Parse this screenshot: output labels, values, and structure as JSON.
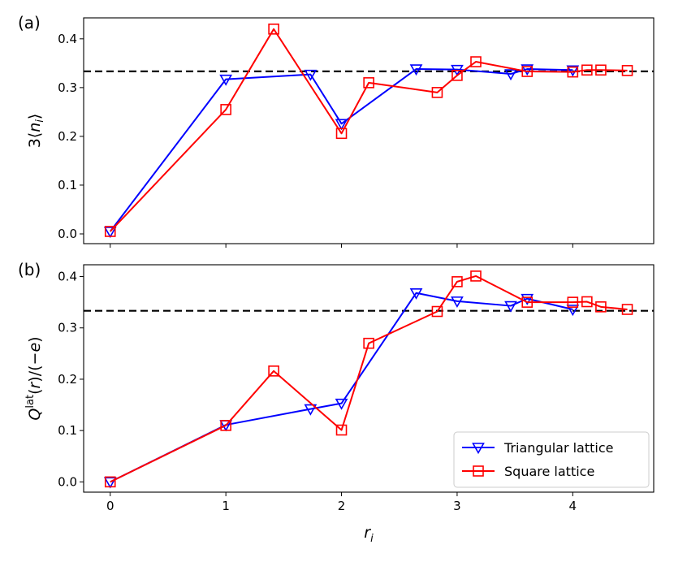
{
  "chart_data": [
    {
      "type": "line",
      "panel_label": "(a)",
      "ylabel": "3⟨nᵢ⟩",
      "ylim": [
        -0.02,
        0.443
      ],
      "xlim": [
        -0.23,
        4.7
      ],
      "yticks": [
        0.0,
        0.1,
        0.2,
        0.3,
        0.4
      ],
      "ytick_labels": [
        "0.0",
        "0.1",
        "0.2",
        "0.3",
        "0.4"
      ],
      "reference_line": {
        "y": 0.3333,
        "style": "dashed",
        "color": "#000000"
      },
      "series": [
        {
          "key": "triangular",
          "color": "#0000ff",
          "marker": "triangle-down",
          "x": [
            0,
            1,
            1.732,
            2,
            2.646,
            3,
            3.464,
            3.606,
            4
          ],
          "y": [
            0.005,
            0.317,
            0.327,
            0.226,
            0.338,
            0.337,
            0.328,
            0.338,
            0.336
          ]
        },
        {
          "key": "square",
          "color": "#ff0000",
          "marker": "square",
          "x": [
            0,
            1,
            1.414,
            2,
            2.236,
            2.828,
            3,
            3.162,
            3.606,
            4,
            4.123,
            4.243,
            4.472
          ],
          "y": [
            0.005,
            0.255,
            0.42,
            0.206,
            0.31,
            0.29,
            0.325,
            0.353,
            0.333,
            0.332,
            0.336,
            0.336,
            0.335
          ]
        }
      ]
    },
    {
      "type": "line",
      "panel_label": "(b)",
      "ylabel": "Q^lat(r)/(−e)",
      "xlabel": "rᵢ",
      "ylim": [
        -0.02,
        0.423
      ],
      "xlim": [
        -0.23,
        4.7
      ],
      "xticks": [
        0,
        1,
        2,
        3,
        4
      ],
      "xtick_labels": [
        "0",
        "1",
        "2",
        "3",
        "4"
      ],
      "yticks": [
        0.0,
        0.1,
        0.2,
        0.3,
        0.4
      ],
      "ytick_labels": [
        "0.0",
        "0.1",
        "0.2",
        "0.3",
        "0.4"
      ],
      "reference_line": {
        "y": 0.3333,
        "style": "dashed",
        "color": "#000000"
      },
      "legend": {
        "placement": "lower-right",
        "entries": [
          {
            "label": "Triangular lattice",
            "color": "#0000ff",
            "marker": "triangle-down"
          },
          {
            "label": "Square lattice",
            "color": "#ff0000",
            "marker": "square"
          }
        ]
      },
      "series": [
        {
          "key": "triangular",
          "name": "Triangular lattice",
          "color": "#0000ff",
          "marker": "triangle-down",
          "x": [
            0,
            1,
            1.732,
            2,
            2.646,
            3,
            3.464,
            3.606,
            4
          ],
          "y": [
            0.0,
            0.111,
            0.142,
            0.153,
            0.368,
            0.352,
            0.343,
            0.357,
            0.336
          ]
        },
        {
          "key": "square",
          "name": "Square lattice",
          "color": "#ff0000",
          "marker": "square",
          "x": [
            0,
            1,
            1.414,
            2,
            2.236,
            2.828,
            3,
            3.162,
            3.606,
            4,
            4.123,
            4.243,
            4.472
          ],
          "y": [
            0.0,
            0.11,
            0.216,
            0.101,
            0.27,
            0.332,
            0.39,
            0.401,
            0.35,
            0.35,
            0.351,
            0.341,
            0.336
          ]
        }
      ]
    }
  ]
}
